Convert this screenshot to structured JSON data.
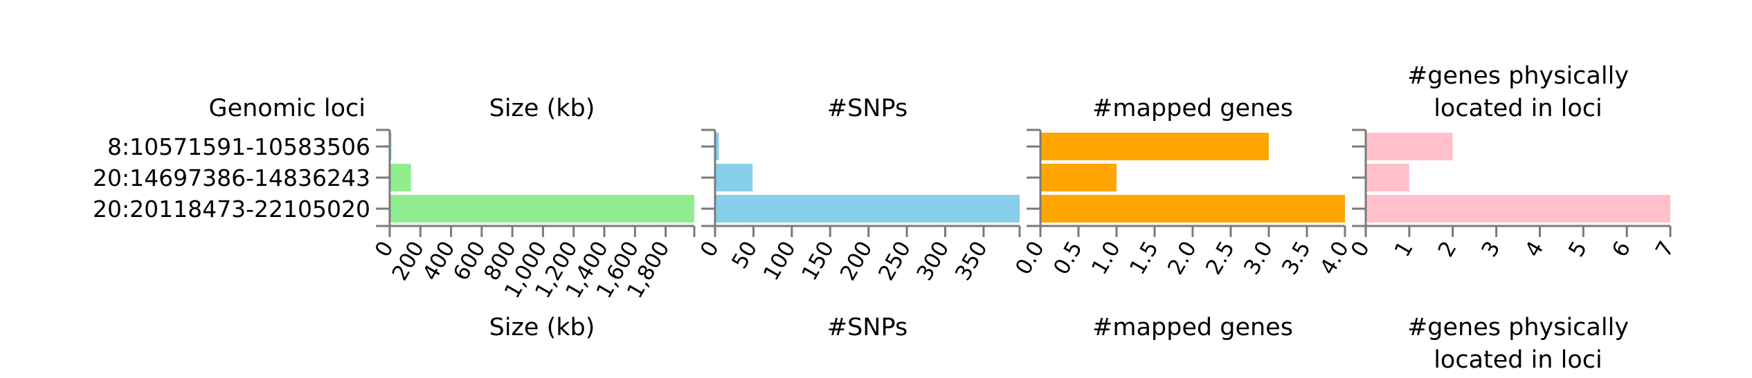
{
  "row_header": "Genomic loci",
  "loci": [
    "8:10571591-10583506",
    "20:14697386-14836243",
    "20:20118473-22105020"
  ],
  "axis_color": "#7a7a7a",
  "chart_data": [
    {
      "type": "bar",
      "orientation": "horizontal",
      "title": "Size (kb)",
      "xlabel": "Size (kb)",
      "categories": [
        "8:10571591-10583506",
        "20:14697386-14836243",
        "20:20118473-22105020"
      ],
      "values": [
        11.9,
        138.9,
        1987
      ],
      "xlim": [
        0,
        1987
      ],
      "ticks": [
        0,
        200,
        400,
        600,
        800,
        1000,
        1200,
        1400,
        1600,
        1800
      ],
      "tick_labels": [
        "0",
        "200",
        "400",
        "600",
        "800",
        "1,000",
        "1,200",
        "1,400",
        "1,600",
        "1,800"
      ],
      "color": "#90ee90"
    },
    {
      "type": "bar",
      "orientation": "horizontal",
      "title": "#SNPs",
      "xlabel": "#SNPs",
      "categories": [
        "8:10571591-10583506",
        "20:14697386-14836243",
        "20:20118473-22105020"
      ],
      "values": [
        5,
        49,
        397
      ],
      "xlim": [
        0,
        397
      ],
      "ticks": [
        0,
        50,
        100,
        150,
        200,
        250,
        300,
        350
      ],
      "tick_labels": [
        "0",
        "50",
        "100",
        "150",
        "200",
        "250",
        "300",
        "350"
      ],
      "color": "#87ceeb"
    },
    {
      "type": "bar",
      "orientation": "horizontal",
      "title": "#mapped genes",
      "xlabel": "#mapped genes",
      "categories": [
        "8:10571591-10583506",
        "20:14697386-14836243",
        "20:20118473-22105020"
      ],
      "values": [
        3,
        1,
        4
      ],
      "xlim": [
        0,
        4
      ],
      "ticks": [
        0,
        0.5,
        1,
        1.5,
        2,
        2.5,
        3,
        3.5,
        4
      ],
      "tick_labels": [
        "0.0",
        "0.5",
        "1.0",
        "1.5",
        "2.0",
        "2.5",
        "3.0",
        "3.5",
        "4.0"
      ],
      "color": "#ffa500"
    },
    {
      "type": "bar",
      "orientation": "horizontal",
      "title": "#genes physically located in loci",
      "xlabel": "#genes physically located in loci",
      "title_lines": [
        "#genes physically",
        "located in loci"
      ],
      "categories": [
        "8:10571591-10583506",
        "20:14697386-14836243",
        "20:20118473-22105020"
      ],
      "values": [
        2,
        1,
        7
      ],
      "xlim": [
        0,
        7
      ],
      "ticks": [
        0,
        1,
        2,
        3,
        4,
        5,
        6,
        7
      ],
      "tick_labels": [
        "0",
        "1",
        "2",
        "3",
        "4",
        "5",
        "6",
        "7"
      ],
      "color": "#ffc0cb"
    }
  ]
}
